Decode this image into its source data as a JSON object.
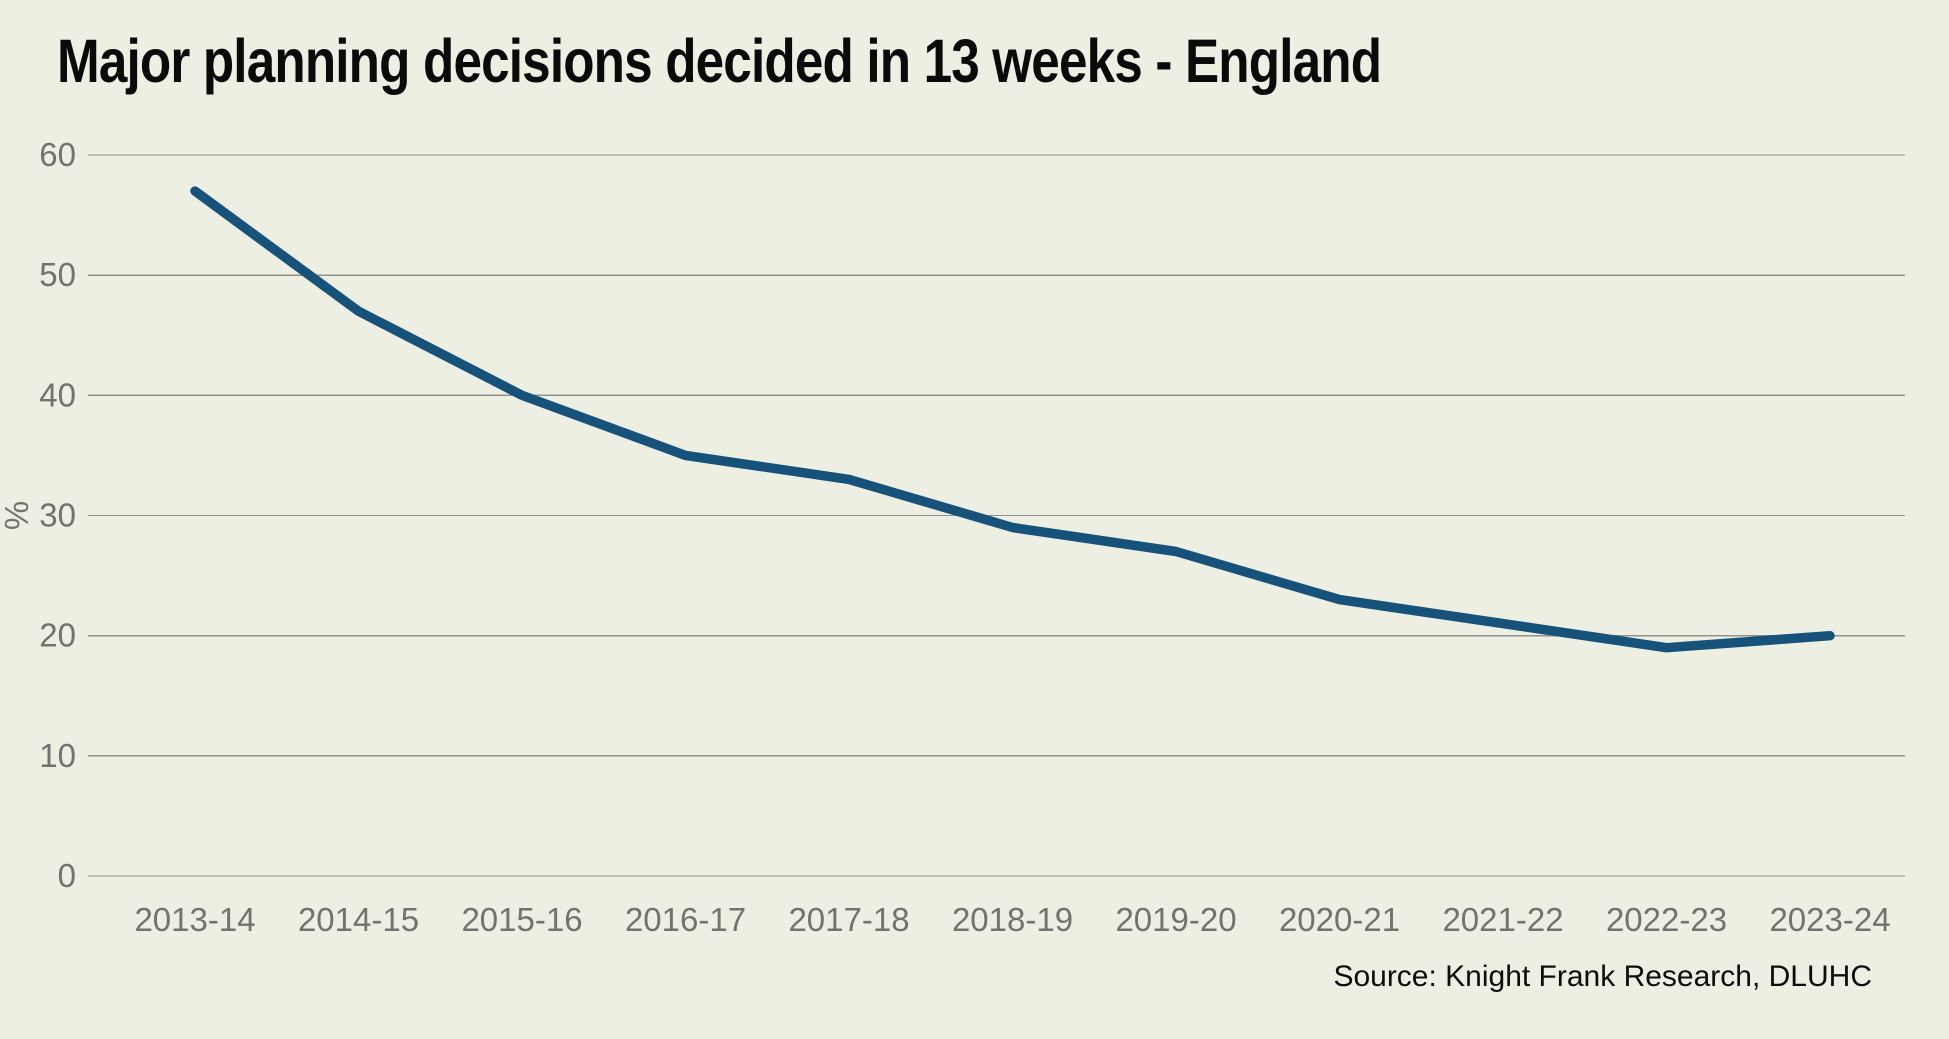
{
  "title": "Major planning decisions decided in 13 weeks - England",
  "source": "Source: Knight Frank Research, DLUHC",
  "colors": {
    "background": "#EEEFE3",
    "line": "#17527A",
    "grid": "#92928A",
    "tick_label": "#6F746F",
    "title_text": "#0A0A0A",
    "source_text": "#0D0D0D"
  },
  "chart_data": {
    "type": "line",
    "title": "Major planning decisions decided in 13 weeks - England",
    "categories": [
      "2013-14",
      "2014-15",
      "2015-16",
      "2016-17",
      "2017-18",
      "2018-19",
      "2019-20",
      "2020-21",
      "2021-22",
      "2022-23",
      "2023-24"
    ],
    "series": [
      {
        "name": "Major planning decisions decided in 13 weeks",
        "values": [
          57,
          47,
          40,
          35,
          33,
          29,
          27,
          23,
          21,
          19,
          20
        ]
      }
    ],
    "xlabel": "",
    "ylabel": "%",
    "ylim": [
      0,
      60
    ],
    "yticks": [
      0,
      10,
      20,
      30,
      40,
      50,
      60
    ],
    "grid": "horizontal",
    "legend": "none",
    "annotation": "Source: Knight Frank Research, DLUHC"
  }
}
